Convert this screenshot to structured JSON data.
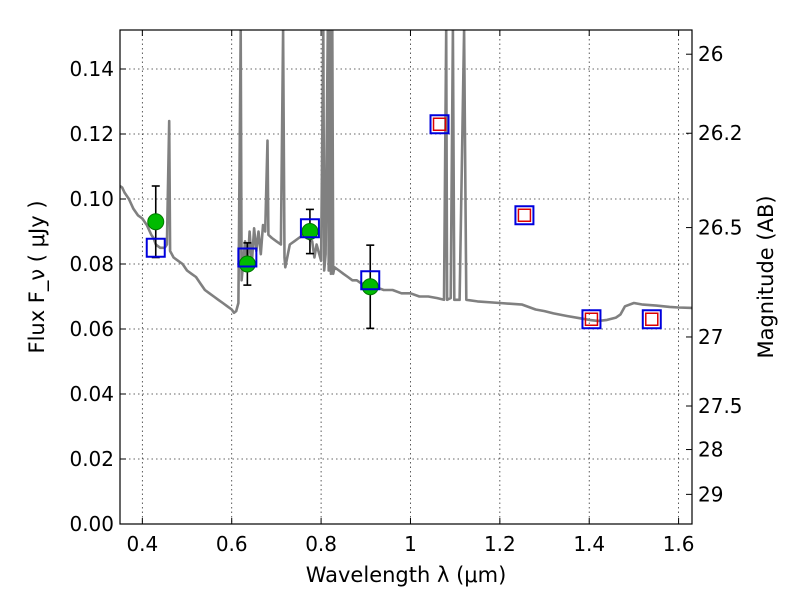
{
  "chart_data": {
    "type": "scatter",
    "xlabel": "Wavelength  λ (μm)",
    "ylabel_left": "Flux  F_ν  ( μJy )",
    "ylabel_right": "Magnitude (AB)",
    "xlim": [
      0.35,
      1.63
    ],
    "ylim": [
      0.0,
      0.152
    ],
    "grid": true,
    "x_ticks": [
      0.4,
      0.6,
      0.8,
      1.0,
      1.2,
      1.4,
      1.6
    ],
    "x_tick_labels": [
      "0.4",
      "0.6",
      "0.8",
      "1",
      "1.2",
      "1.4",
      "1.6"
    ],
    "y_ticks": [
      0.0,
      0.02,
      0.04,
      0.06,
      0.08,
      0.1,
      0.12,
      0.14
    ],
    "y_tick_labels": [
      "0.00",
      "0.02",
      "0.04",
      "0.06",
      "0.08",
      "0.10",
      "0.12",
      "0.14"
    ],
    "y2_ticks": [
      26,
      26.2,
      26.5,
      27,
      27.5,
      28,
      29
    ],
    "y2_tick_labels": [
      "26",
      "26.2",
      "26.5",
      "27",
      "27.5",
      "28",
      "29"
    ],
    "series": [
      {
        "kind": "line",
        "color": "#808080",
        "points": [
          [
            0.35,
            0.104
          ],
          [
            0.355,
            0.1035
          ],
          [
            0.36,
            0.102
          ],
          [
            0.37,
            0.1
          ],
          [
            0.38,
            0.097
          ],
          [
            0.39,
            0.095
          ],
          [
            0.4,
            0.094
          ],
          [
            0.41,
            0.092
          ],
          [
            0.42,
            0.089
          ],
          [
            0.425,
            0.088
          ],
          [
            0.43,
            0.086
          ],
          [
            0.44,
            0.085
          ],
          [
            0.45,
            0.085
          ],
          [
            0.455,
            0.086
          ],
          [
            0.46,
            0.124
          ],
          [
            0.462,
            0.084
          ],
          [
            0.47,
            0.082
          ],
          [
            0.48,
            0.081
          ],
          [
            0.49,
            0.08
          ],
          [
            0.5,
            0.078
          ],
          [
            0.51,
            0.077
          ],
          [
            0.52,
            0.076
          ],
          [
            0.53,
            0.074
          ],
          [
            0.54,
            0.072
          ],
          [
            0.55,
            0.071
          ],
          [
            0.56,
            0.07
          ],
          [
            0.57,
            0.069
          ],
          [
            0.58,
            0.068
          ],
          [
            0.59,
            0.067
          ],
          [
            0.6,
            0.066
          ],
          [
            0.605,
            0.065
          ],
          [
            0.61,
            0.0655
          ],
          [
            0.615,
            0.068
          ],
          [
            0.62,
            0.152
          ],
          [
            0.622,
            0.075
          ],
          [
            0.63,
            0.087
          ],
          [
            0.635,
            0.078
          ],
          [
            0.64,
            0.09
          ],
          [
            0.645,
            0.08
          ],
          [
            0.65,
            0.091
          ],
          [
            0.655,
            0.084
          ],
          [
            0.66,
            0.09
          ],
          [
            0.665,
            0.083
          ],
          [
            0.67,
            0.092
          ],
          [
            0.675,
            0.09
          ],
          [
            0.68,
            0.118
          ],
          [
            0.682,
            0.089
          ],
          [
            0.69,
            0.088
          ],
          [
            0.7,
            0.087
          ],
          [
            0.71,
            0.086
          ],
          [
            0.715,
            0.152
          ],
          [
            0.718,
            0.082
          ],
          [
            0.72,
            0.079
          ],
          [
            0.73,
            0.086
          ],
          [
            0.74,
            0.087
          ],
          [
            0.75,
            0.088
          ],
          [
            0.76,
            0.089
          ],
          [
            0.77,
            0.088
          ],
          [
            0.78,
            0.087
          ],
          [
            0.785,
            0.082
          ],
          [
            0.79,
            0.086
          ],
          [
            0.8,
            0.081
          ],
          [
            0.805,
            0.152
          ],
          [
            0.807,
            0.078
          ],
          [
            0.81,
            0.083
          ],
          [
            0.815,
            0.152
          ],
          [
            0.817,
            0.078
          ],
          [
            0.82,
            0.152
          ],
          [
            0.822,
            0.077
          ],
          [
            0.825,
            0.152
          ],
          [
            0.827,
            0.077
          ],
          [
            0.83,
            0.079
          ],
          [
            0.84,
            0.078
          ],
          [
            0.85,
            0.077
          ],
          [
            0.86,
            0.076
          ],
          [
            0.87,
            0.075
          ],
          [
            0.88,
            0.075
          ],
          [
            0.89,
            0.074
          ],
          [
            0.9,
            0.074
          ],
          [
            0.92,
            0.073
          ],
          [
            0.94,
            0.072
          ],
          [
            0.96,
            0.072
          ],
          [
            0.98,
            0.071
          ],
          [
            1.0,
            0.071
          ],
          [
            1.02,
            0.07
          ],
          [
            1.04,
            0.07
          ],
          [
            1.06,
            0.0695
          ],
          [
            1.075,
            0.069
          ],
          [
            1.08,
            0.152
          ],
          [
            1.082,
            0.069
          ],
          [
            1.09,
            0.0695
          ],
          [
            1.095,
            0.152
          ],
          [
            1.098,
            0.069
          ],
          [
            1.11,
            0.069
          ],
          [
            1.12,
            0.152
          ],
          [
            1.125,
            0.069
          ],
          [
            1.15,
            0.0685
          ],
          [
            1.2,
            0.068
          ],
          [
            1.25,
            0.0675
          ],
          [
            1.28,
            0.066
          ],
          [
            1.3,
            0.0655
          ],
          [
            1.32,
            0.0648
          ],
          [
            1.35,
            0.064
          ],
          [
            1.38,
            0.0633
          ],
          [
            1.4,
            0.0628
          ],
          [
            1.42,
            0.0625
          ],
          [
            1.44,
            0.0628
          ],
          [
            1.46,
            0.0635
          ],
          [
            1.47,
            0.0645
          ],
          [
            1.48,
            0.067
          ],
          [
            1.5,
            0.068
          ],
          [
            1.52,
            0.0675
          ],
          [
            1.55,
            0.0672
          ],
          [
            1.58,
            0.0668
          ],
          [
            1.6,
            0.0666
          ],
          [
            1.63,
            0.0665
          ]
        ]
      },
      {
        "kind": "points_with_errors",
        "marker": "circle",
        "color": "#00bb00",
        "points": [
          {
            "x": 0.43,
            "y": 0.093,
            "err": 0.011
          },
          {
            "x": 0.635,
            "y": 0.08,
            "err": 0.0065
          },
          {
            "x": 0.775,
            "y": 0.09,
            "err": 0.0068
          },
          {
            "x": 0.91,
            "y": 0.073,
            "err": 0.0128
          }
        ]
      },
      {
        "kind": "points",
        "marker": "square-outline",
        "color": "#0000dd",
        "points": [
          {
            "x": 0.43,
            "y": 0.085
          },
          {
            "x": 0.635,
            "y": 0.082
          },
          {
            "x": 0.775,
            "y": 0.091
          },
          {
            "x": 0.91,
            "y": 0.075
          },
          {
            "x": 1.065,
            "y": 0.123
          },
          {
            "x": 1.255,
            "y": 0.095
          },
          {
            "x": 1.405,
            "y": 0.063
          },
          {
            "x": 1.54,
            "y": 0.063
          }
        ]
      },
      {
        "kind": "points",
        "marker": "square-outline-small",
        "color": "#dd0000",
        "points": [
          {
            "x": 1.065,
            "y": 0.123
          },
          {
            "x": 1.255,
            "y": 0.095
          },
          {
            "x": 1.405,
            "y": 0.063
          },
          {
            "x": 1.54,
            "y": 0.063
          }
        ]
      }
    ]
  }
}
